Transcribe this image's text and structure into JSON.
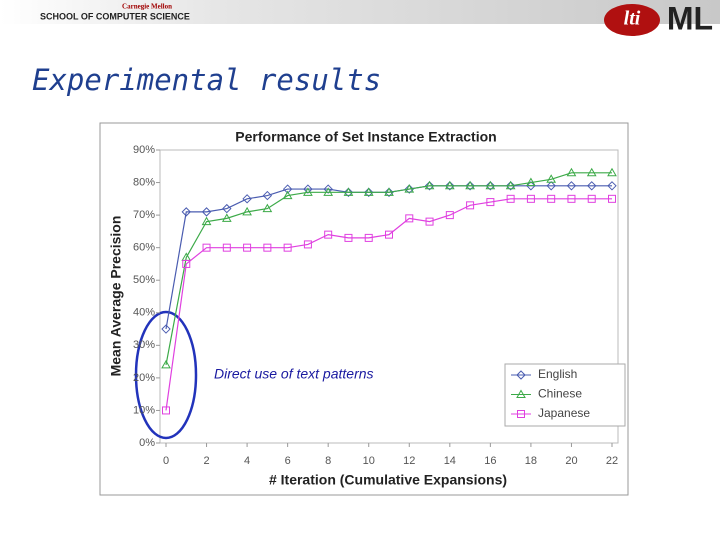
{
  "header": {
    "university": "Carnegie Mellon",
    "school": "SCHOOL OF COMPUTER SCIENCE",
    "logo_lti": "lti",
    "logo_ml": "ML"
  },
  "slide_title": "Experimental results",
  "chart_data": {
    "type": "line",
    "title": "Performance of Set Instance Extraction",
    "xlabel": "# Iteration (Cumulative Expansions)",
    "ylabel": "Mean Average Precision",
    "annotation": "Direct use of text patterns",
    "x": [
      0,
      1,
      2,
      3,
      4,
      5,
      6,
      7,
      8,
      9,
      10,
      11,
      12,
      13,
      14,
      15,
      16,
      17,
      18,
      19,
      20,
      21,
      22
    ],
    "xlim": [
      0,
      22
    ],
    "xticks": [
      0,
      2,
      4,
      6,
      8,
      10,
      12,
      14,
      16,
      18,
      20,
      22
    ],
    "ylim": [
      0,
      90
    ],
    "yticks": [
      {
        "value": 0,
        "label": "0%"
      },
      {
        "value": 10,
        "label": "10%"
      },
      {
        "value": 20,
        "label": "20%"
      },
      {
        "value": 30,
        "label": "30%"
      },
      {
        "value": 40,
        "label": "40%"
      },
      {
        "value": 50,
        "label": "50%"
      },
      {
        "value": 60,
        "label": "60%"
      },
      {
        "value": 70,
        "label": "70%"
      },
      {
        "value": 80,
        "label": "80%"
      },
      {
        "value": 90,
        "label": "90%"
      }
    ],
    "series": [
      {
        "name": "English",
        "color": "#4a5cb0",
        "marker": "diamond",
        "values": [
          35,
          71,
          71,
          72,
          75,
          76,
          78,
          78,
          78,
          77,
          77,
          77,
          78,
          79,
          79,
          79,
          79,
          79,
          79,
          79,
          79,
          79,
          79
        ]
      },
      {
        "name": "Chinese",
        "color": "#3caa48",
        "marker": "triangle",
        "values": [
          24,
          57,
          68,
          69,
          71,
          72,
          76,
          77,
          77,
          77,
          77,
          77,
          78,
          79,
          79,
          79,
          79,
          79,
          80,
          81,
          83,
          83,
          83
        ]
      },
      {
        "name": "Japanese",
        "color": "#e040e0",
        "marker": "square",
        "values": [
          10,
          55,
          60,
          60,
          60,
          60,
          60,
          61,
          64,
          63,
          63,
          64,
          69,
          68,
          70,
          73,
          74,
          75,
          75,
          75,
          75,
          75,
          75
        ]
      }
    ]
  }
}
